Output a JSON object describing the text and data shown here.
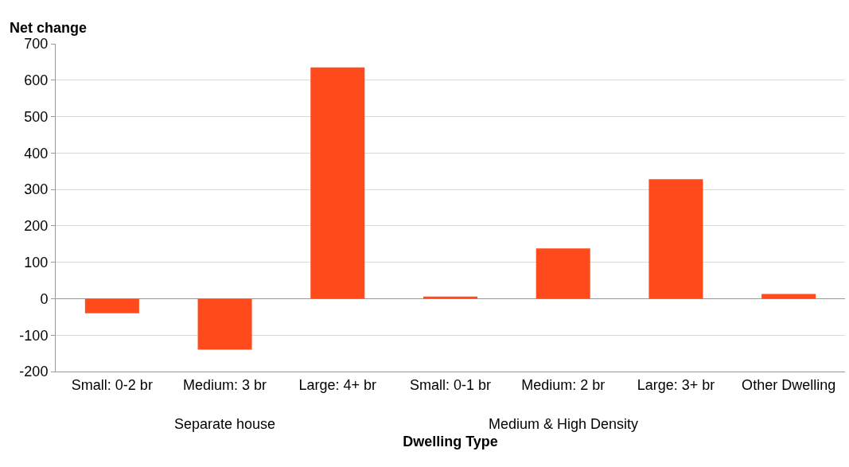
{
  "chart_data": {
    "type": "bar",
    "ylabel": "Net change",
    "xlabel": "Dwelling Type",
    "categories": [
      "Small: 0-2 br",
      "Medium: 3 br",
      "Large: 4+ br",
      "Small: 0-1 br",
      "Medium: 2 br",
      "Large: 3+ br",
      "Other Dwelling"
    ],
    "values": [
      -40,
      -140,
      635,
      6,
      138,
      328,
      13
    ],
    "color": "#ff4a1c",
    "ylim": [
      -200,
      700
    ],
    "yticks": [
      -200,
      -100,
      0,
      100,
      200,
      300,
      400,
      500,
      600,
      700
    ],
    "grid": "y",
    "legend": false,
    "annotations": [
      "Separate house",
      "Medium & High Density"
    ]
  }
}
